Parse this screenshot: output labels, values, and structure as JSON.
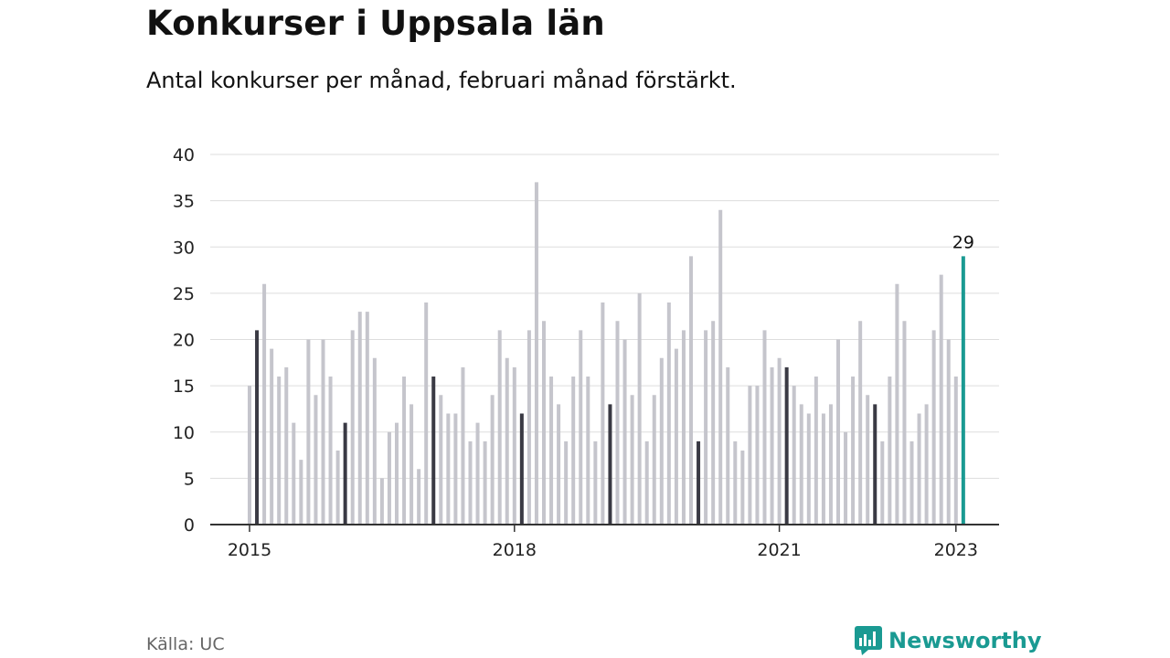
{
  "title": "Konkurser i Uppsala län",
  "subtitle": "Antal konkurser per månad, februari månad förstärkt.",
  "source": "Källa: UC",
  "brand": {
    "name": "Newsworthy",
    "icon": "newsworthy-logo-icon",
    "color": "#1a9a92"
  },
  "colors": {
    "normal": "#c5c5cc",
    "february": "#3a3a44",
    "latest": "#1a9a92",
    "grid": "#dddddd",
    "axis": "#333333"
  },
  "chart_data": {
    "type": "bar",
    "title": "Konkurser i Uppsala län",
    "subtitle": "Antal konkurser per månad, februari månad förstärkt.",
    "xlabel": "",
    "ylabel": "",
    "ylim": [
      0,
      40
    ],
    "yticks": [
      "0",
      "5",
      "10",
      "15",
      "20",
      "25",
      "30",
      "35",
      "40"
    ],
    "xticks": [
      "2015",
      "2018",
      "2021",
      "2023"
    ],
    "grid": true,
    "start_month": "2015-01",
    "values": [
      15,
      21,
      26,
      19,
      16,
      17,
      11,
      7,
      20,
      14,
      20,
      16,
      8,
      11,
      21,
      23,
      23,
      18,
      5,
      10,
      11,
      16,
      13,
      6,
      24,
      16,
      14,
      12,
      12,
      17,
      9,
      11,
      9,
      14,
      21,
      18,
      17,
      12,
      21,
      37,
      22,
      16,
      13,
      9,
      16,
      21,
      16,
      9,
      24,
      13,
      22,
      20,
      14,
      25,
      9,
      14,
      18,
      24,
      19,
      21,
      29,
      9,
      21,
      22,
      34,
      17,
      9,
      8,
      15,
      15,
      21,
      17,
      18,
      17,
      15,
      13,
      12,
      16,
      12,
      13,
      20,
      10,
      16,
      22,
      14,
      13,
      9,
      16,
      26,
      22,
      9,
      12,
      13,
      21,
      27,
      20,
      16,
      29
    ],
    "highlight_month": "februari",
    "latest_label": "29"
  }
}
